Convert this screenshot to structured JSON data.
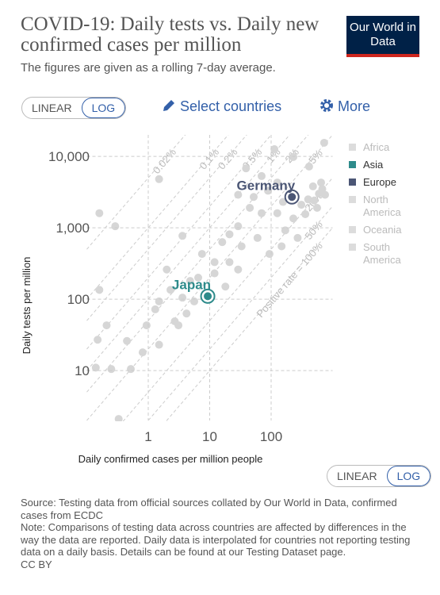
{
  "title": "COVID-19: Daily tests vs. Daily new confirmed cases per million",
  "subtitle": "The figures are given as a rolling 7-day average.",
  "logo": "Our World in Data",
  "controls": {
    "linear": "LINEAR",
    "log": "LOG",
    "select": "Select countries",
    "more": "More"
  },
  "footer": {
    "source": "Source: Testing data from official sources collated by Our World in Data, confirmed cases from ECDC",
    "note": "Note: Comparisons of testing data across countries are affected by differences in the way the data are reported. Daily data is interpolated for countries not reporting testing data on a daily basis. Details can be found at our Testing Dataset page.",
    "license": "CC BY"
  },
  "chart_data": {
    "type": "scatter",
    "log_scale": true,
    "grid": true,
    "xlabel": "Daily confirmed cases per million people",
    "ylabel": "Daily tests per million",
    "xlim": [
      0.1,
      1000
    ],
    "ylim": [
      2,
      20000
    ],
    "xticks": [
      1,
      10,
      100
    ],
    "yticks": [
      {
        "value": 10000,
        "label": "10,000"
      },
      {
        "value": 1000,
        "label": "1,000"
      },
      100,
      10
    ],
    "x_scale_toggle": {
      "linear": "LINEAR",
      "log": "LOG"
    },
    "rate_lines": [
      {
        "value": 0.02,
        "label": "0.02%"
      },
      {
        "value": 0.1,
        "label": "0.1%"
      },
      {
        "value": 0.2,
        "label": "0.2%"
      },
      {
        "value": 0.5,
        "label": "0.5%"
      },
      {
        "value": 1,
        "label": "1%"
      },
      {
        "value": 2,
        "label": "2%"
      },
      {
        "value": 5,
        "label": "5%"
      },
      {
        "value": 20,
        "label": "20%"
      },
      {
        "value": 50,
        "label": "50%"
      },
      {
        "value": 100,
        "label": "Positive rate = 100%"
      }
    ],
    "series": [
      {
        "name": "Africa",
        "color": "#dcdcdc",
        "x": [],
        "values": []
      },
      {
        "name": "Asia",
        "color": "#2e8b8b",
        "x": [
          9.3
        ],
        "values": [
          110
        ],
        "point_labels": [
          "Japan"
        ]
      },
      {
        "name": "Europe",
        "color": "#4b5675",
        "x": [
          218
        ],
        "values": [
          2700
        ],
        "point_labels": [
          "Germany"
        ]
      },
      {
        "name": "North America",
        "color": "#dcdcdc",
        "x": [],
        "values": []
      },
      {
        "name": "Oceania",
        "color": "#dcdcdc",
        "x": [],
        "values": []
      },
      {
        "name": "South America",
        "color": "#dcdcdc",
        "x": [],
        "values": []
      }
    ],
    "other_points": {
      "color": "#d6d6d6",
      "x": [
        730,
        113,
        230,
        415,
        39,
        70,
        126,
        29,
        52,
        89,
        156,
        310,
        480,
        650,
        755,
        560,
        360,
        230,
        126,
        70,
        45,
        29,
        21,
        16,
        33,
        60,
        94,
        148,
        270,
        170,
        21,
        29,
        12,
        7.5,
        12,
        18,
        6.5,
        4.8,
        3.6,
        5.6,
        4.2,
        2.7,
        3.1,
        2.0,
        2.3,
        1.5,
        1.3,
        0.94,
        0.81,
        1.5,
        0.45,
        0.52,
        0.25,
        0.14,
        0.15,
        0.21,
        0.16,
        0.29,
        1.5,
        0.33,
        0.16,
        3.6,
        600,
        400,
        680,
        500
      ],
      "values": [
        15500,
        12600,
        9800,
        7200,
        6800,
        5300,
        4300,
        2900,
        2700,
        3300,
        2300,
        2100,
        3800,
        4300,
        2900,
        1900,
        1550,
        1350,
        1600,
        1600,
        1900,
        1050,
        810,
        630,
        550,
        720,
        430,
        550,
        720,
        920,
        330,
        260,
        330,
        430,
        230,
        150,
        200,
        180,
        105,
        93,
        63,
        49,
        43,
        260,
        135,
        93,
        72,
        43,
        18,
        23,
        26,
        10.5,
        10.5,
        11,
        27,
        43,
        135,
        1050,
        4800,
        2.1,
        1600,
        770,
        3000,
        2500,
        3500,
        2400
      ]
    }
  }
}
